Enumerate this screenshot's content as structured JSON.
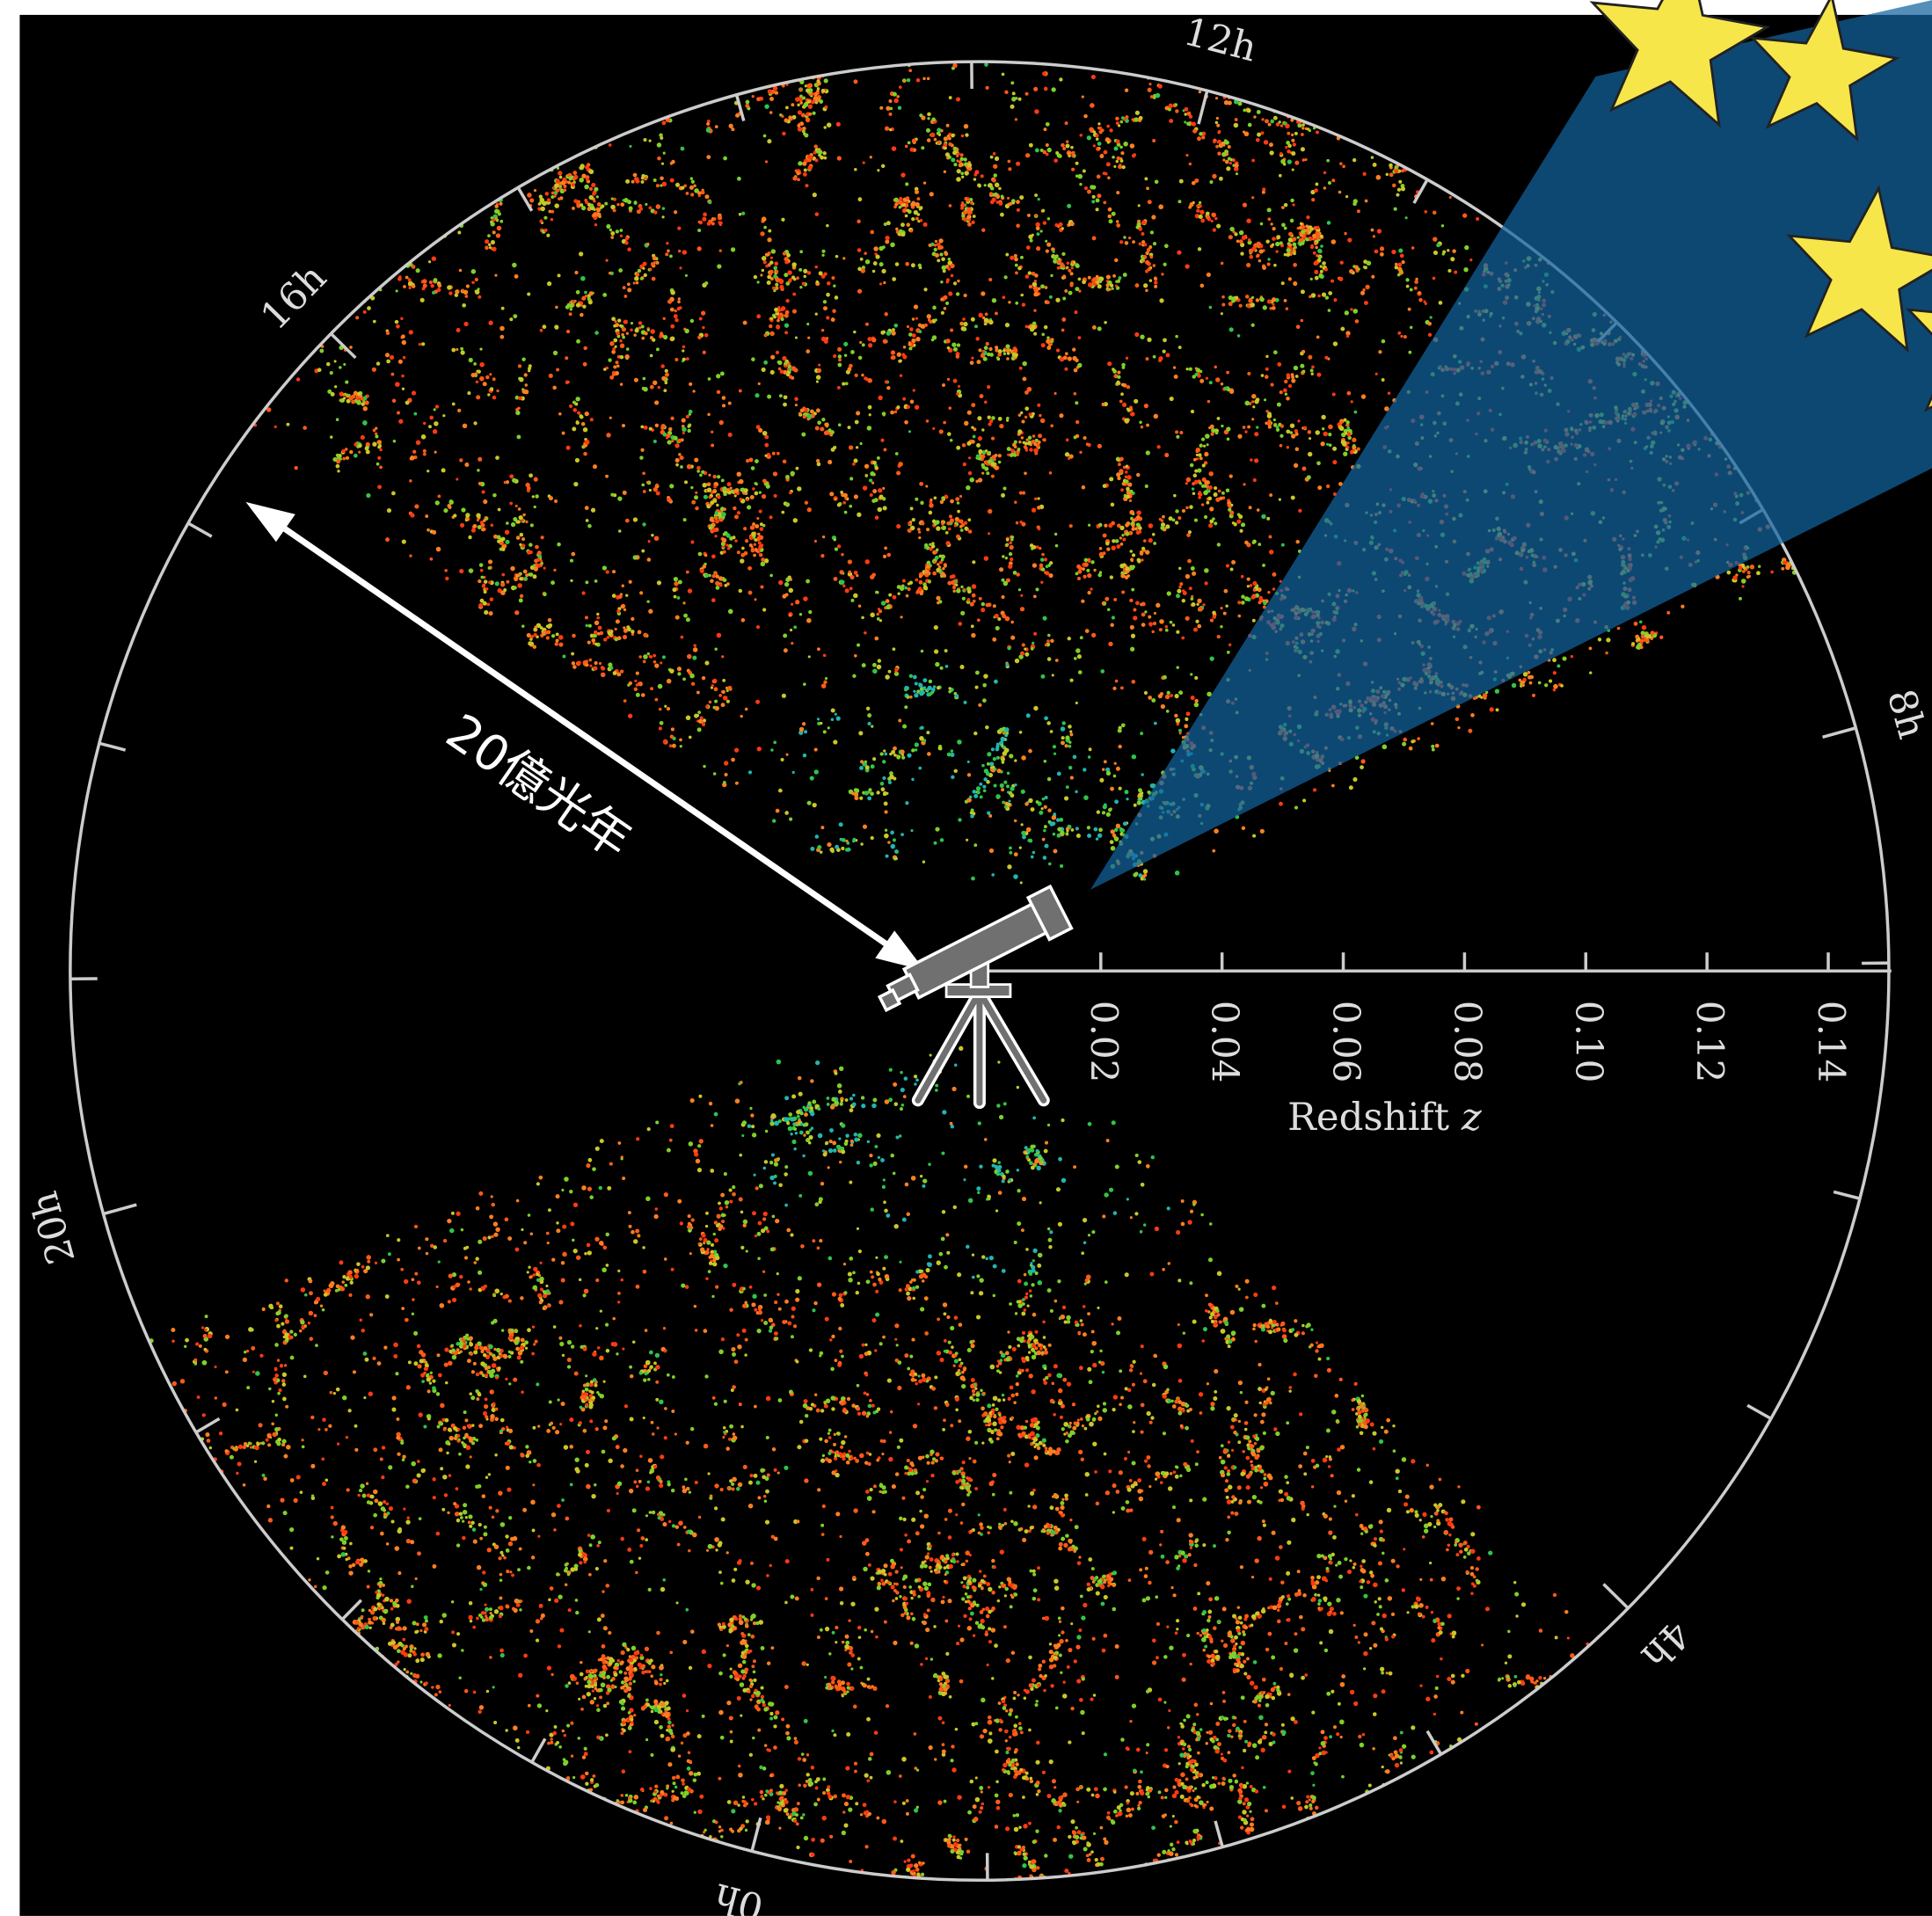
{
  "ra_labels": [
    "12h",
    "8h",
    "4h",
    "0h",
    "20h",
    "16h"
  ],
  "redshift_axis": {
    "label": "Redshift",
    "variable": "z",
    "lim": [
      0,
      0.15
    ],
    "ticks": [
      0.02,
      0.04,
      0.06,
      0.08,
      {
        "value": 0.1,
        "label": "0.10"
      },
      0.12,
      0.14
    ]
  },
  "annotation": "20億光年"
}
